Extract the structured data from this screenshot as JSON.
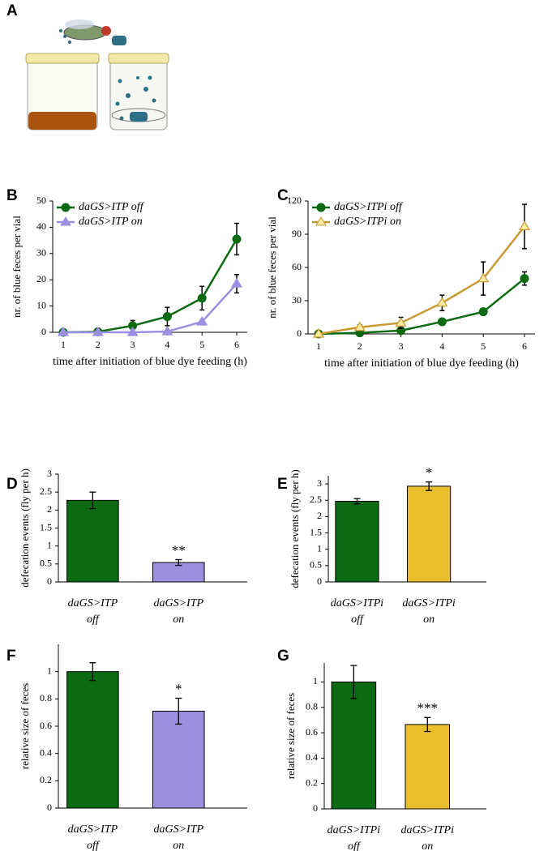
{
  "illustration": {
    "panel": "A"
  },
  "chart_data": [
    {
      "type": "line",
      "panel": "B",
      "y_label": "nr. of blue feces per vial",
      "x_label": "time after initiation of blue dye feeding (h)",
      "categories": [
        1,
        2,
        3,
        4,
        5,
        6
      ],
      "ylim": [
        0,
        50
      ],
      "yticks": [
        0,
        10,
        20,
        30,
        40,
        50
      ],
      "legend": "upper left",
      "series": [
        {
          "name": "daGS>ITP off",
          "color": "#0b6a12",
          "marker": "circle",
          "marker_fill": "#0b6a12",
          "values": [
            0,
            0.2,
            2.5,
            6,
            13,
            35.5
          ],
          "errors": [
            0.5,
            0.5,
            2,
            3.5,
            4.5,
            6
          ]
        },
        {
          "name": "daGS>ITP on",
          "color": "#9d8fe0",
          "marker": "triangle",
          "marker_fill": "#9d8fe0",
          "values": [
            0,
            0,
            0,
            0.3,
            4,
            18.5
          ],
          "errors": [
            0,
            0,
            0,
            0.3,
            0.5,
            3.5
          ]
        }
      ]
    },
    {
      "type": "line",
      "panel": "C",
      "y_label": "nr. of blue feces  per vial",
      "x_label": "time after initiation of blue dye feeding (h)",
      "categories": [
        1,
        2,
        3,
        4,
        5,
        6
      ],
      "ylim": [
        0,
        120
      ],
      "yticks": [
        0,
        30,
        60,
        90,
        120
      ],
      "legend": "upper left",
      "series": [
        {
          "name": "daGS>ITPi off",
          "color": "#0b6a12",
          "marker": "circle",
          "marker_fill": "#0b6a12",
          "values": [
            0,
            1,
            3,
            11,
            20,
            50
          ],
          "errors": [
            0,
            0.5,
            1,
            2,
            2,
            6
          ]
        },
        {
          "name": "daGS>ITPi on",
          "color": "#c89a35",
          "marker": "triangle",
          "marker_fill": "#fbe9a0",
          "values": [
            0,
            6,
            10,
            28,
            50,
            97
          ],
          "errors": [
            0,
            2,
            5,
            7,
            15,
            20
          ]
        }
      ]
    },
    {
      "type": "bar",
      "panel": "D",
      "y_label": "defecation events (fly per h)",
      "categories": [
        [
          "daGS>ITP",
          "off"
        ],
        [
          "daGS>ITP",
          "on"
        ]
      ],
      "colors": [
        "#0b6a12",
        "#9d8fe0"
      ],
      "values": [
        2.27,
        0.54
      ],
      "errors": [
        0.23,
        0.08
      ],
      "annotations": [
        null,
        "**"
      ],
      "ylim": [
        0,
        3
      ],
      "yticks": [
        0,
        0.5,
        1,
        1.5,
        2,
        2.5,
        3
      ]
    },
    {
      "type": "bar",
      "panel": "E",
      "y_label": "defecation events (fly per h)",
      "categories": [
        [
          "daGS>ITPi",
          "off"
        ],
        [
          "daGS>ITPi",
          "on"
        ]
      ],
      "colors": [
        "#0b6a12",
        "#eabf2e"
      ],
      "values": [
        2.47,
        2.93
      ],
      "errors": [
        0.08,
        0.13
      ],
      "annotations": [
        null,
        "*"
      ],
      "ylim": [
        0,
        3.25
      ],
      "yticks": [
        0,
        0.5,
        1,
        1.5,
        2,
        2.5,
        3
      ]
    },
    {
      "type": "bar",
      "panel": "F",
      "y_label": "relative size of feces",
      "categories": [
        [
          "daGS>ITP",
          "off"
        ],
        [
          "daGS>ITP",
          "on"
        ]
      ],
      "colors": [
        "#0b6a12",
        "#9d8fe0"
      ],
      "values": [
        1,
        0.71
      ],
      "errors": [
        0.065,
        0.095
      ],
      "annotations": [
        null,
        "*"
      ],
      "ylim": [
        0,
        1.2
      ],
      "yticks": [
        0,
        0.2,
        0.4,
        0.6,
        0.8,
        1
      ]
    },
    {
      "type": "bar",
      "panel": "G",
      "y_label": "relative size of feces",
      "categories": [
        [
          "daGS>ITPi",
          "off"
        ],
        [
          "daGS>ITPi",
          "on"
        ]
      ],
      "colors": [
        "#0b6a12",
        "#eabf2e"
      ],
      "values": [
        1,
        0.665
      ],
      "errors": [
        0.13,
        0.055
      ],
      "annotations": [
        null,
        "***"
      ],
      "ylim": [
        0,
        1.15
      ],
      "yticks": [
        0,
        0.2,
        0.4,
        0.6,
        0.8,
        1
      ]
    }
  ]
}
